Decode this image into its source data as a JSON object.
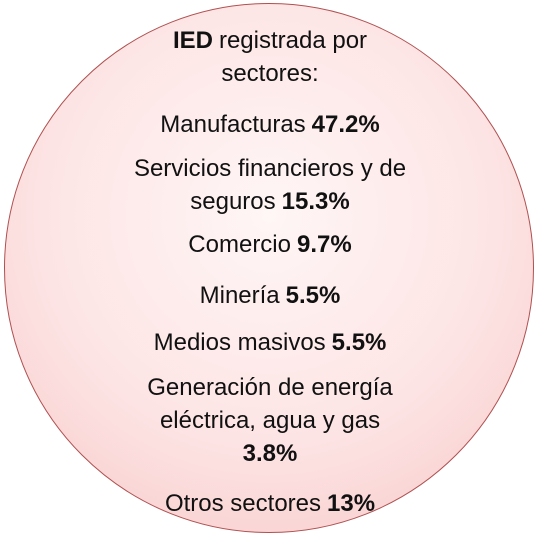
{
  "title": {
    "bold": "IED",
    "text": "registrada por sectores:"
  },
  "items": [
    {
      "label": "Manufacturas",
      "value": "47.2%"
    },
    {
      "label": "Servicios financieros y de seguros",
      "value": "15.3%"
    },
    {
      "label": "Comercio",
      "value": "9.7%"
    },
    {
      "label": "Minería",
      "value": "5.5%"
    },
    {
      "label": "Medios masivos",
      "value": "5.5%"
    },
    {
      "label": "Generación de energía eléctrica, agua y gas",
      "value": "3.8%"
    },
    {
      "label": "Otros sectores",
      "value": "13%"
    }
  ]
}
